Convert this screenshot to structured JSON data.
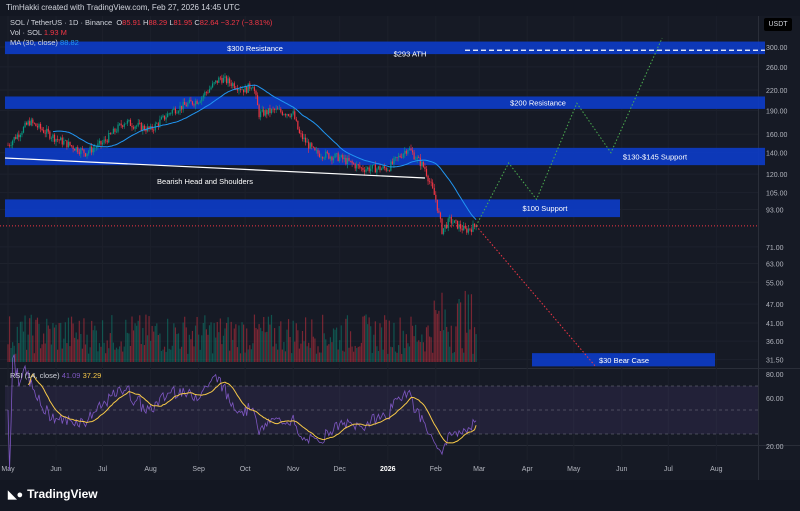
{
  "header": {
    "attribution": "TimHakki created with TradingView.com, Feb 27, 2026 14:45 UTC"
  },
  "legend": {
    "symbol": "SOL / TetherUS · 1D · Binance",
    "o_label": "O",
    "o": "85.91",
    "h_label": "H",
    "h": "88.29",
    "l_label": "L",
    "l": "81.95",
    "c_label": "C",
    "c": "82.64",
    "change": "−3.27 (−3.81%)",
    "vol_label": "Vol · SOL",
    "vol": "1.93 M",
    "ma_label": "MA (30, close)",
    "ma": "88.82",
    "rsi_label": "RSI (14, close)",
    "rsi": "41.09",
    "rsi_ma": "37.29"
  },
  "currency": "USDT",
  "branding": "TradingView",
  "colors": {
    "up": "#089981",
    "down": "#f23645",
    "ma": "#2196f3",
    "band": "#0c3cc9",
    "rsi": "#7e57c2",
    "rsi_ma": "#f7c948",
    "projection_bull": "#4caf50",
    "projection_bear": "#f23645"
  },
  "chart_data": {
    "type": "candlestick",
    "price_scale": "log",
    "ylim": [
      30,
      320
    ],
    "y_ticks": [
      "300.00",
      "260.00",
      "220.00",
      "190.00",
      "160.00",
      "140.00",
      "120.00",
      "105.00",
      "93.00",
      "71.00",
      "63.00",
      "55.00",
      "47.00",
      "41.00",
      "36.00",
      "31.50"
    ],
    "y_tick_values": [
      300,
      260,
      220,
      190,
      160,
      140,
      120,
      105,
      93,
      71,
      63,
      55,
      47,
      41,
      36,
      31.5
    ],
    "x_ticks": [
      "May",
      "Jun",
      "Jul",
      "Aug",
      "Sep",
      "Oct",
      "Nov",
      "Dec",
      "2026",
      "Feb",
      "Mar",
      "Apr",
      "May",
      "Jun",
      "Jul",
      "Aug"
    ],
    "price_path": {
      "dates": [
        "2025-05-01",
        "2025-05-15",
        "2025-06-01",
        "2025-06-20",
        "2025-07-01",
        "2025-07-15",
        "2025-08-01",
        "2025-08-15",
        "2025-09-01",
        "2025-09-15",
        "2025-10-01",
        "2025-10-06",
        "2025-10-10",
        "2025-10-20",
        "2025-11-01",
        "2025-11-05",
        "2025-11-15",
        "2025-12-01",
        "2025-12-15",
        "2026-01-01",
        "2026-01-14",
        "2026-01-25",
        "2026-02-01",
        "2026-02-05",
        "2026-02-10",
        "2026-02-20",
        "2026-02-27"
      ],
      "close": [
        148,
        175,
        155,
        140,
        150,
        175,
        165,
        190,
        205,
        240,
        220,
        230,
        185,
        190,
        185,
        160,
        140,
        135,
        125,
        125,
        145,
        125,
        100,
        80,
        86,
        80,
        82.64
      ]
    },
    "last_price": 82.64,
    "ma_30": 88.82,
    "volume_last": "1.93 M",
    "zones": [
      {
        "label": "$300 Resistance",
        "low": 285,
        "high": 312
      },
      {
        "label": "$293 ATH",
        "value": 293,
        "style": "dashed"
      },
      {
        "label": "$200 Resistance",
        "low": 192,
        "high": 210
      },
      {
        "label": "$130-$145 Support",
        "low": 128,
        "high": 145
      },
      {
        "label": "$100 Support",
        "low": 88,
        "high": 100
      },
      {
        "label": "$30 Bear Case",
        "low": 30,
        "high": 33
      }
    ],
    "annotations": [
      {
        "label": "Bearish Head and Shoulders",
        "type": "neckline"
      }
    ],
    "projections": {
      "bull": {
        "dates": [
          "2026-02-27",
          "2026-03-20",
          "2026-04-07",
          "2026-05-03",
          "2026-05-25",
          "2026-06-27"
        ],
        "price": [
          82.64,
          130,
          100,
          200,
          140,
          320
        ]
      },
      "bear": {
        "dates": [
          "2026-02-27",
          "2026-05-15"
        ],
        "price": [
          82.64,
          30
        ]
      }
    },
    "rsi": {
      "ylim": [
        15,
        85
      ],
      "y_ticks": [
        "80.00",
        "60.00",
        "20.00"
      ],
      "y_tick_values": [
        80,
        60,
        20
      ],
      "band": [
        30,
        70
      ],
      "last": 41.09,
      "ma_last": 37.29
    }
  }
}
